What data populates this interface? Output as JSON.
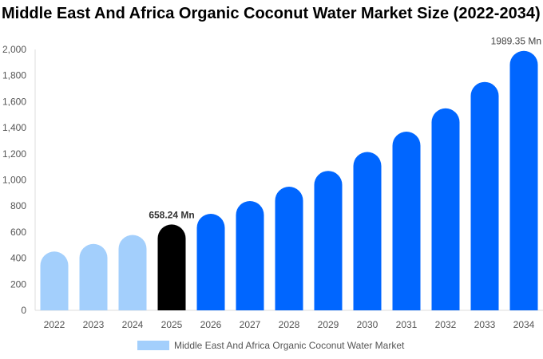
{
  "chart_data": {
    "type": "bar",
    "title": "Middle East And Africa Organic Coconut Water Market Size (2022-2034)",
    "categories": [
      "2022",
      "2023",
      "2024",
      "2025",
      "2026",
      "2027",
      "2028",
      "2029",
      "2030",
      "2031",
      "2032",
      "2033",
      "2034"
    ],
    "series": [
      {
        "name": "Middle East And Africa Organic Coconut Water Market",
        "values": [
          451,
          509,
          578,
          658.24,
          740,
          838,
          948,
          1069,
          1214,
          1370,
          1549,
          1751,
          1989.35
        ]
      }
    ],
    "data_labels": {
      "3": "658.24 Mn",
      "12": "1989.35 Mn"
    },
    "ylim": [
      0,
      2000
    ],
    "yticks": [
      0,
      200,
      400,
      600,
      800,
      1000,
      1200,
      1400,
      1600,
      1800,
      2000
    ],
    "ytick_labels": [
      "0",
      "200",
      "400",
      "600",
      "800",
      "1,000",
      "1,200",
      "1,400",
      "1,600",
      "1,800",
      "2,000"
    ],
    "xlabel": "",
    "ylabel": "",
    "grid": false,
    "legend_position": "bottom",
    "colors": {
      "historical": "#a3cffc",
      "current": "#000000",
      "forecast": "#0066ff"
    }
  }
}
